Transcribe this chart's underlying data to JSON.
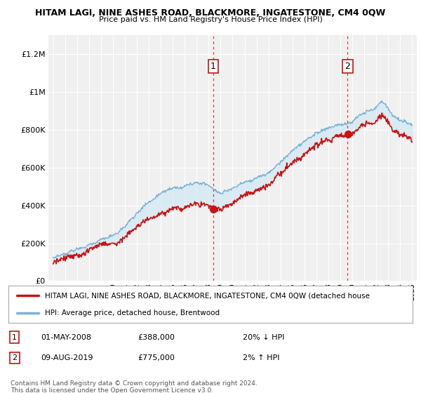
{
  "title": "HITAM LAGI, NINE ASHES ROAD, BLACKMORE, INGATESTONE, CM4 0QW",
  "subtitle": "Price paid vs. HM Land Registry's House Price Index (HPI)",
  "ylim": [
    0,
    1300000
  ],
  "yticks": [
    0,
    200000,
    400000,
    600000,
    800000,
    1000000,
    1200000
  ],
  "ytick_labels": [
    "£0",
    "£200K",
    "£400K",
    "£600K",
    "£800K",
    "£1M",
    "£1.2M"
  ],
  "hpi_color": "#7ab0d4",
  "price_color": "#cc1111",
  "shaded_color": "#d0e8f5",
  "background_color": "#f0f0f0",
  "sale1_year": 2008.37,
  "sale1_price": 388000,
  "sale2_year": 2019.62,
  "sale2_price": 775000,
  "legend_text1": "HITAM LAGI, NINE ASHES ROAD, BLACKMORE, INGATESTONE, CM4 0QW (detached house",
  "legend_text2": "HPI: Average price, detached house, Brentwood",
  "note1_label": "1",
  "note1_date": "01-MAY-2008",
  "note1_price": "£388,000",
  "note1_hpi": "20% ↓ HPI",
  "note2_label": "2",
  "note2_date": "09-AUG-2019",
  "note2_price": "£775,000",
  "note2_hpi": "2% ↑ HPI",
  "footer": "Contains HM Land Registry data © Crown copyright and database right 2024.\nThis data is licensed under the Open Government Licence v3.0."
}
